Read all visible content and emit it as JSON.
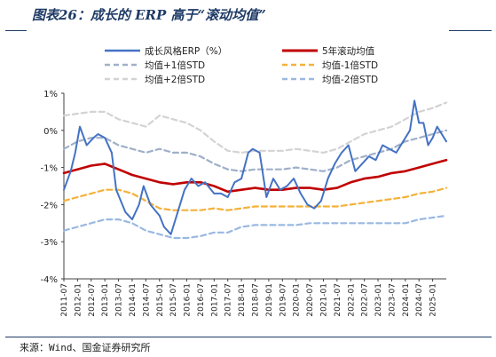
{
  "header": {
    "title": "图表26：成长的 ERP 高于“滚动均值”"
  },
  "footer": {
    "source": "来源：Wind、国金证券研究所"
  },
  "colors": {
    "erp": "#4472c4",
    "rolling_mean": "#c00000",
    "mean_plus_1std": "#9fb0c9",
    "mean_minus_1std": "#f4b13a",
    "mean_plus_2std": "#d3d3d3",
    "mean_minus_2std": "#9ab8e2",
    "title": "#1f3b66"
  },
  "chart_data": {
    "type": "line",
    "title": "",
    "xlabel": "",
    "ylabel": "",
    "ylim": [
      -4,
      1
    ],
    "yticks": [
      "1%",
      "0%",
      "-1%",
      "-2%",
      "-3%",
      "-4%"
    ],
    "ytick_values": [
      1,
      0,
      -1,
      -2,
      -3,
      -4
    ],
    "x_range": [
      "2011-07",
      "2025-07"
    ],
    "xticks": [
      "2011-07",
      "2012-01",
      "2012-07",
      "2013-01",
      "2013-07",
      "2014-01",
      "2014-07",
      "2015-01",
      "2015-07",
      "2016-01",
      "2016-07",
      "2017-01",
      "2017-07",
      "2018-01",
      "2018-07",
      "2019-01",
      "2019-07",
      "2020-01",
      "2020-07",
      "2021-01",
      "2021-07",
      "2022-01",
      "2022-07",
      "2023-01",
      "2023-07",
      "2024-01",
      "2024-07",
      "2025-01"
    ],
    "legend_placement": "top",
    "grid": false,
    "series": [
      {
        "name": "成长风格ERP（%）",
        "style": "solid",
        "points": [
          [
            "2011-07",
            -1.6
          ],
          [
            "2011-10",
            -1.1
          ],
          [
            "2011-12",
            -0.6
          ],
          [
            "2012-02",
            0.1
          ],
          [
            "2012-05",
            -0.4
          ],
          [
            "2012-08",
            -0.2
          ],
          [
            "2012-10",
            -0.1
          ],
          [
            "2013-01",
            -0.2
          ],
          [
            "2013-04",
            -0.6
          ],
          [
            "2013-06",
            -1.6
          ],
          [
            "2013-10",
            -2.2
          ],
          [
            "2014-01",
            -2.4
          ],
          [
            "2014-04",
            -2.0
          ],
          [
            "2014-06",
            -1.5
          ],
          [
            "2014-09",
            -2.0
          ],
          [
            "2015-01",
            -2.3
          ],
          [
            "2015-03",
            -2.6
          ],
          [
            "2015-06",
            -2.8
          ],
          [
            "2015-09",
            -2.2
          ],
          [
            "2015-12",
            -1.6
          ],
          [
            "2016-03",
            -1.3
          ],
          [
            "2016-06",
            -1.5
          ],
          [
            "2016-09",
            -1.4
          ],
          [
            "2017-01",
            -1.7
          ],
          [
            "2017-04",
            -1.7
          ],
          [
            "2017-07",
            -1.8
          ],
          [
            "2017-10",
            -1.4
          ],
          [
            "2018-01",
            -1.3
          ],
          [
            "2018-04",
            -0.6
          ],
          [
            "2018-06",
            -0.5
          ],
          [
            "2018-09",
            -0.6
          ],
          [
            "2018-12",
            -1.8
          ],
          [
            "2019-03",
            -1.3
          ],
          [
            "2019-06",
            -1.6
          ],
          [
            "2019-09",
            -1.5
          ],
          [
            "2019-12",
            -1.3
          ],
          [
            "2020-03",
            -1.7
          ],
          [
            "2020-06",
            -2.0
          ],
          [
            "2020-09",
            -2.1
          ],
          [
            "2020-12",
            -1.9
          ],
          [
            "2021-03",
            -1.3
          ],
          [
            "2021-06",
            -0.9
          ],
          [
            "2021-09",
            -0.6
          ],
          [
            "2021-12",
            -0.4
          ],
          [
            "2022-03",
            -1.1
          ],
          [
            "2022-06",
            -0.9
          ],
          [
            "2022-09",
            -0.7
          ],
          [
            "2022-12",
            -0.8
          ],
          [
            "2023-03",
            -0.4
          ],
          [
            "2023-06",
            -0.5
          ],
          [
            "2023-09",
            -0.6
          ],
          [
            "2023-12",
            -0.3
          ],
          [
            "2024-03",
            0.0
          ],
          [
            "2024-05",
            0.8
          ],
          [
            "2024-07",
            0.2
          ],
          [
            "2024-09",
            0.2
          ],
          [
            "2024-11",
            -0.4
          ],
          [
            "2025-01",
            -0.2
          ],
          [
            "2025-03",
            0.1
          ],
          [
            "2025-05",
            -0.1
          ],
          [
            "2025-07",
            -0.3
          ]
        ]
      },
      {
        "name": "5年滚动均值",
        "style": "solid",
        "points": [
          [
            "2011-07",
            -1.15
          ],
          [
            "2012-01",
            -1.05
          ],
          [
            "2012-07",
            -0.95
          ],
          [
            "2013-01",
            -0.9
          ],
          [
            "2013-07",
            -1.05
          ],
          [
            "2014-01",
            -1.2
          ],
          [
            "2014-07",
            -1.3
          ],
          [
            "2015-01",
            -1.4
          ],
          [
            "2015-07",
            -1.45
          ],
          [
            "2016-01",
            -1.4
          ],
          [
            "2016-07",
            -1.4
          ],
          [
            "2017-01",
            -1.5
          ],
          [
            "2017-07",
            -1.65
          ],
          [
            "2018-01",
            -1.6
          ],
          [
            "2018-07",
            -1.55
          ],
          [
            "2019-01",
            -1.6
          ],
          [
            "2019-07",
            -1.6
          ],
          [
            "2020-01",
            -1.55
          ],
          [
            "2020-07",
            -1.55
          ],
          [
            "2021-01",
            -1.6
          ],
          [
            "2021-07",
            -1.55
          ],
          [
            "2022-01",
            -1.4
          ],
          [
            "2022-07",
            -1.3
          ],
          [
            "2023-01",
            -1.25
          ],
          [
            "2023-07",
            -1.15
          ],
          [
            "2024-01",
            -1.1
          ],
          [
            "2024-07",
            -1.0
          ],
          [
            "2025-01",
            -0.9
          ],
          [
            "2025-07",
            -0.8
          ]
        ]
      },
      {
        "name": "均值+1倍STD",
        "style": "dashed",
        "points": [
          [
            "2011-07",
            -0.5
          ],
          [
            "2012-01",
            -0.3
          ],
          [
            "2012-07",
            -0.2
          ],
          [
            "2013-01",
            -0.2
          ],
          [
            "2013-07",
            -0.4
          ],
          [
            "2014-01",
            -0.5
          ],
          [
            "2014-07",
            -0.6
          ],
          [
            "2015-01",
            -0.5
          ],
          [
            "2015-07",
            -0.6
          ],
          [
            "2016-01",
            -0.6
          ],
          [
            "2016-07",
            -0.7
          ],
          [
            "2017-01",
            -0.9
          ],
          [
            "2017-07",
            -1.05
          ],
          [
            "2018-01",
            -1.1
          ],
          [
            "2018-07",
            -1.05
          ],
          [
            "2019-01",
            -1.05
          ],
          [
            "2019-07",
            -1.05
          ],
          [
            "2020-01",
            -1.0
          ],
          [
            "2020-07",
            -1.05
          ],
          [
            "2021-01",
            -1.1
          ],
          [
            "2021-07",
            -1.0
          ],
          [
            "2022-01",
            -0.8
          ],
          [
            "2022-07",
            -0.7
          ],
          [
            "2023-01",
            -0.6
          ],
          [
            "2023-07",
            -0.5
          ],
          [
            "2024-01",
            -0.3
          ],
          [
            "2024-07",
            -0.2
          ],
          [
            "2025-01",
            -0.1
          ],
          [
            "2025-07",
            0.0
          ]
        ]
      },
      {
        "name": "均值-1倍STD",
        "style": "dashed",
        "points": [
          [
            "2011-07",
            -1.9
          ],
          [
            "2012-01",
            -1.8
          ],
          [
            "2012-07",
            -1.7
          ],
          [
            "2013-01",
            -1.6
          ],
          [
            "2013-07",
            -1.6
          ],
          [
            "2014-01",
            -1.7
          ],
          [
            "2014-07",
            -1.9
          ],
          [
            "2015-01",
            -2.1
          ],
          [
            "2015-07",
            -2.15
          ],
          [
            "2016-01",
            -2.15
          ],
          [
            "2016-07",
            -2.15
          ],
          [
            "2017-01",
            -2.1
          ],
          [
            "2017-07",
            -2.15
          ],
          [
            "2018-01",
            -2.1
          ],
          [
            "2018-07",
            -2.05
          ],
          [
            "2019-01",
            -2.05
          ],
          [
            "2019-07",
            -2.05
          ],
          [
            "2020-01",
            -2.05
          ],
          [
            "2020-07",
            -2.05
          ],
          [
            "2021-01",
            -2.05
          ],
          [
            "2021-07",
            -2.05
          ],
          [
            "2022-01",
            -2.0
          ],
          [
            "2022-07",
            -1.95
          ],
          [
            "2023-01",
            -1.9
          ],
          [
            "2023-07",
            -1.85
          ],
          [
            "2024-01",
            -1.8
          ],
          [
            "2024-07",
            -1.7
          ],
          [
            "2025-01",
            -1.65
          ],
          [
            "2025-07",
            -1.55
          ]
        ]
      },
      {
        "name": "均值+2倍STD",
        "style": "dashed",
        "points": [
          [
            "2011-07",
            0.4
          ],
          [
            "2012-01",
            0.45
          ],
          [
            "2012-07",
            0.5
          ],
          [
            "2013-01",
            0.5
          ],
          [
            "2013-07",
            0.3
          ],
          [
            "2014-01",
            0.2
          ],
          [
            "2014-07",
            0.1
          ],
          [
            "2015-01",
            0.4
          ],
          [
            "2015-07",
            0.3
          ],
          [
            "2016-01",
            0.2
          ],
          [
            "2016-07",
            0.0
          ],
          [
            "2017-01",
            -0.3
          ],
          [
            "2017-07",
            -0.55
          ],
          [
            "2018-01",
            -0.6
          ],
          [
            "2018-07",
            -0.55
          ],
          [
            "2019-01",
            -0.55
          ],
          [
            "2019-07",
            -0.55
          ],
          [
            "2020-01",
            -0.5
          ],
          [
            "2020-07",
            -0.55
          ],
          [
            "2021-01",
            -0.6
          ],
          [
            "2021-07",
            -0.5
          ],
          [
            "2022-01",
            -0.3
          ],
          [
            "2022-07",
            -0.1
          ],
          [
            "2023-01",
            0.0
          ],
          [
            "2023-07",
            0.1
          ],
          [
            "2024-01",
            0.3
          ],
          [
            "2024-07",
            0.5
          ],
          [
            "2025-01",
            0.6
          ],
          [
            "2025-07",
            0.75
          ]
        ]
      },
      {
        "name": "均值-2倍STD",
        "style": "dashed",
        "points": [
          [
            "2011-07",
            -2.7
          ],
          [
            "2012-01",
            -2.6
          ],
          [
            "2012-07",
            -2.5
          ],
          [
            "2013-01",
            -2.4
          ],
          [
            "2013-07",
            -2.4
          ],
          [
            "2014-01",
            -2.5
          ],
          [
            "2014-07",
            -2.7
          ],
          [
            "2015-01",
            -2.8
          ],
          [
            "2015-07",
            -2.9
          ],
          [
            "2016-01",
            -2.9
          ],
          [
            "2016-07",
            -2.85
          ],
          [
            "2017-01",
            -2.75
          ],
          [
            "2017-07",
            -2.75
          ],
          [
            "2018-01",
            -2.6
          ],
          [
            "2018-07",
            -2.55
          ],
          [
            "2019-01",
            -2.55
          ],
          [
            "2019-07",
            -2.55
          ],
          [
            "2020-01",
            -2.55
          ],
          [
            "2020-07",
            -2.5
          ],
          [
            "2021-01",
            -2.5
          ],
          [
            "2021-07",
            -2.5
          ],
          [
            "2022-01",
            -2.5
          ],
          [
            "2022-07",
            -2.5
          ],
          [
            "2023-01",
            -2.5
          ],
          [
            "2023-07",
            -2.5
          ],
          [
            "2024-01",
            -2.5
          ],
          [
            "2024-07",
            -2.4
          ],
          [
            "2025-01",
            -2.35
          ],
          [
            "2025-07",
            -2.3
          ]
        ]
      }
    ]
  }
}
